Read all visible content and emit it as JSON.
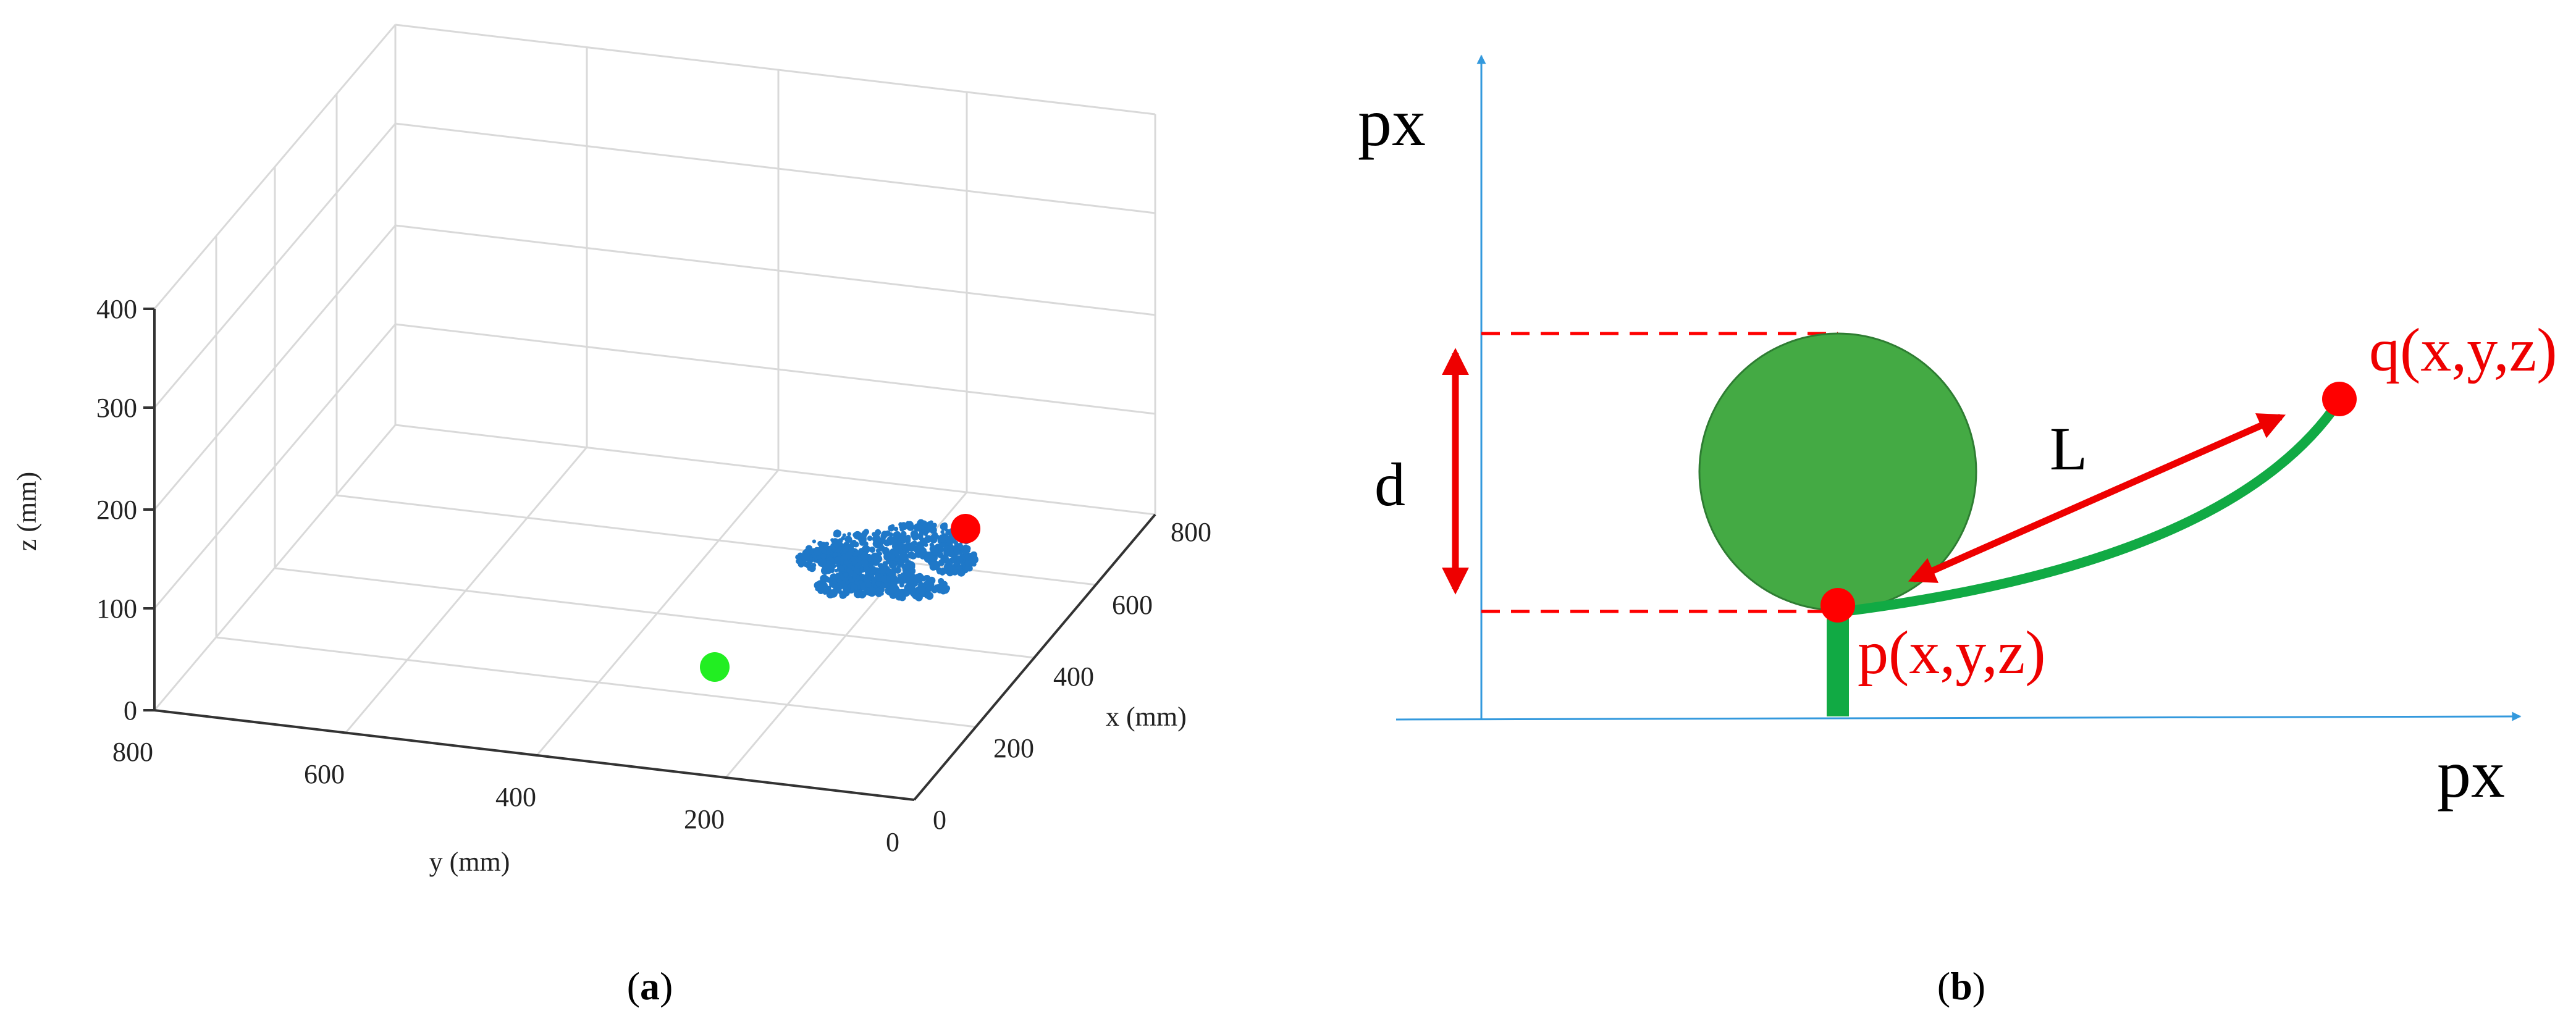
{
  "colors": {
    "grid": "#d9d9d9",
    "box_edge": "#333333",
    "cluster": "#1f78c8",
    "red_point": "#ff0000",
    "green_point": "#22ee22",
    "axis_blue": "#3399dd",
    "canopy_fill": "#44aa44",
    "canopy_edge": "#2e7d32",
    "stem": "#11aa44",
    "dash_red": "#ff0000",
    "arrow_red": "#ee0000",
    "label_red": "#ee0000"
  },
  "panel_a": {
    "caption_open": "(",
    "caption_letter": "a",
    "caption_close": ")",
    "z_axis": {
      "label": "z (mm)",
      "ticks": [
        "0",
        "100",
        "200",
        "300",
        "400"
      ]
    },
    "y_axis": {
      "label": "y (mm)",
      "ticks": [
        "800",
        "600",
        "400",
        "200",
        "0"
      ]
    },
    "x_axis": {
      "label": "x (mm)",
      "ticks": [
        "0",
        "200",
        "400",
        "600",
        "800"
      ]
    },
    "markers": {
      "red": "red-point",
      "green": "green-point",
      "cluster": "blue-point-cluster"
    }
  },
  "panel_b": {
    "caption_open": "(",
    "caption_letter": "b",
    "caption_close": ")",
    "vertical_axis_label": "px",
    "horizontal_axis_label": "px",
    "d_label": "d",
    "L_label": "L",
    "p_label": "p(x,y,z)",
    "q_label": "q(x,y,z)"
  }
}
